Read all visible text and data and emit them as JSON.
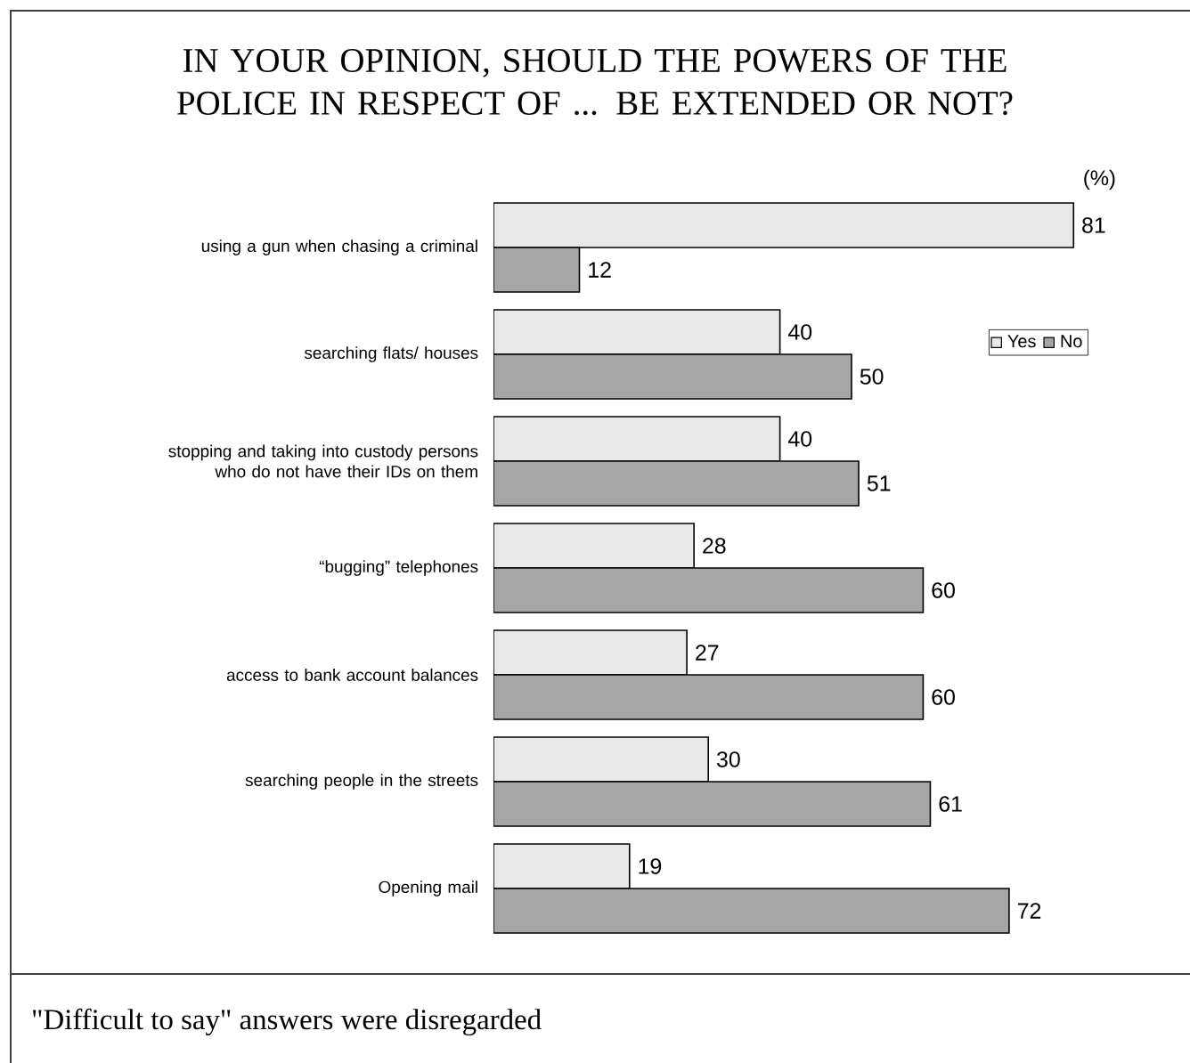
{
  "chart_data": {
    "type": "bar",
    "orientation": "horizontal",
    "title": "IN YOUR OPINION, SHOULD THE POWERS OF THE POLICE IN RESPECT OF ... BE EXTENDED OR NOT?",
    "annotations": [
      "(%)",
      "\"Difficult to say\" answers were disregarded"
    ],
    "categories": [
      "using a gun when chasing a criminal",
      "searching flats/ houses",
      "stopping and taking into custody persons who do not have their IDs on them",
      "“bugging” telephones",
      "access to bank account balances",
      "searching people in the streets",
      "Opening mail"
    ],
    "series": [
      {
        "name": "Yes",
        "color": "#e8e8e8",
        "values": [
          81,
          40,
          40,
          28,
          27,
          30,
          19
        ]
      },
      {
        "name": "No",
        "color": "#a6a6a6",
        "values": [
          12,
          50,
          51,
          60,
          60,
          61,
          72
        ]
      }
    ],
    "data_labels": true,
    "legend": "right"
  }
}
